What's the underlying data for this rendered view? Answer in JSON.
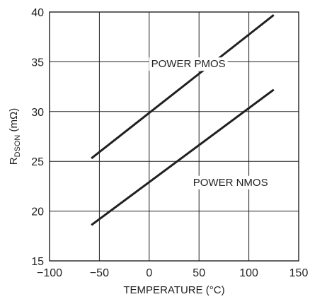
{
  "chart_data": {
    "type": "line",
    "xlabel": "TEMPERATURE (°C)",
    "ylabel": {
      "main": "R",
      "subscript": "DSON",
      "unit": " (mΩ)"
    },
    "xlim": [
      -100,
      150
    ],
    "ylim": [
      15,
      40
    ],
    "x_ticks": [
      -100,
      -50,
      0,
      50,
      100,
      150
    ],
    "y_ticks": [
      15,
      20,
      25,
      30,
      35,
      40
    ],
    "x_tick_labels": [
      "−100",
      "−50",
      "0",
      "50",
      "100",
      "150"
    ],
    "y_tick_labels": [
      "15",
      "20",
      "25",
      "30",
      "35",
      "40"
    ],
    "grid": true,
    "series": [
      {
        "name": "POWER PMOS",
        "x": [
          -58,
          125
        ],
        "y": [
          25.3,
          39.7
        ]
      },
      {
        "name": "POWER NMOS",
        "x": [
          -58,
          125
        ],
        "y": [
          18.6,
          32.2
        ]
      }
    ],
    "colors": {
      "line": "#231f20",
      "grid": "#231f20",
      "background": "#ffffff"
    }
  }
}
